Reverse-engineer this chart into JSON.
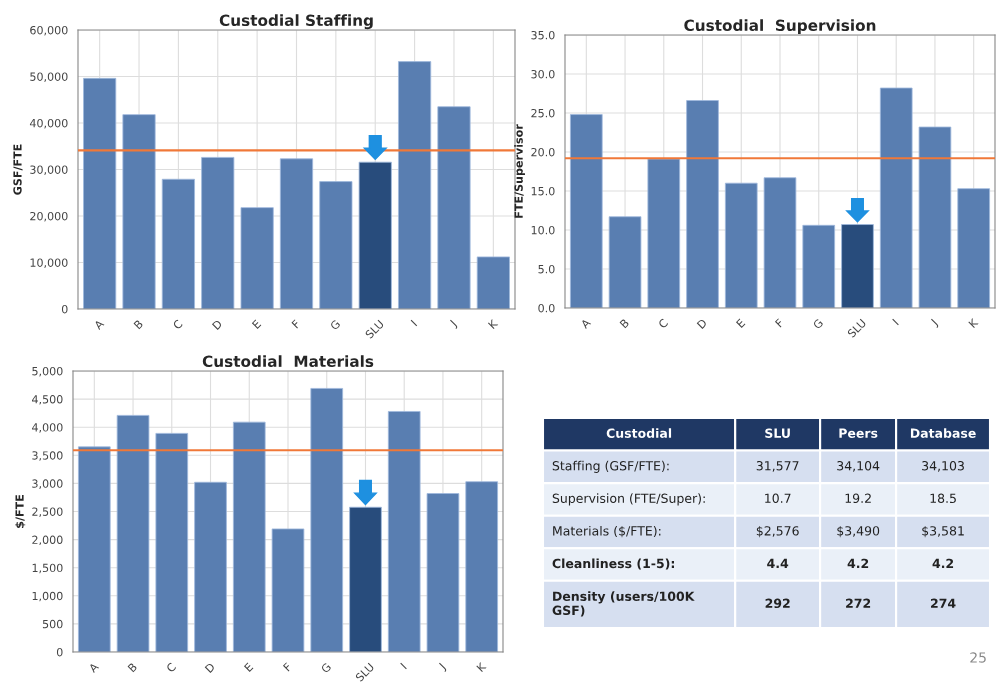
{
  "chart_data": [
    {
      "type": "bar",
      "title": "Custodial Staffing",
      "ylabel": "GSF/FTE",
      "categories": [
        "A",
        "B",
        "C",
        "D",
        "E",
        "F",
        "G",
        "SLU",
        "I",
        "J",
        "K"
      ],
      "values": [
        49600,
        41800,
        27900,
        32600,
        21800,
        32300,
        27400,
        31577,
        53200,
        43500,
        11200
      ],
      "colors": [
        "#4a7cc0",
        "#4a7cc0",
        "#4a7cc0",
        "#4a7cc0",
        "#4a7cc0",
        "#4a7cc0",
        "#4a7cc0",
        "#1a4a8a",
        "#4a7cc0",
        "#4a7cc0",
        "#4a7cc0"
      ],
      "ylim": [
        0,
        60000
      ],
      "yticks": [
        {
          "value": 0,
          "label": "0"
        },
        {
          "value": 10000,
          "label": "10,000"
        },
        {
          "value": 20000,
          "label": "20,000"
        },
        {
          "value": 30000,
          "label": "30,000"
        },
        {
          "value": 40000,
          "label": "40,000"
        },
        {
          "value": 50000,
          "label": "50,000"
        },
        {
          "value": 60000,
          "label": "60,000"
        }
      ],
      "ref_lines": [
        {
          "axis": "y",
          "value": 34104,
          "color": "#f07838"
        }
      ],
      "grid": true
    },
    {
      "type": "bar",
      "title": "Custodial  Supervision",
      "ylabel": "FTE/Supervisor",
      "categories": [
        "A",
        "B",
        "C",
        "D",
        "E",
        "F",
        "G",
        "SLU",
        "I",
        "J",
        "K"
      ],
      "values": [
        24.8,
        11.7,
        19.1,
        26.6,
        16.0,
        16.7,
        10.6,
        10.7,
        28.2,
        23.2,
        15.3
      ],
      "colors": [
        "#4a7cc0",
        "#4a7cc0",
        "#4a7cc0",
        "#4a7cc0",
        "#4a7cc0",
        "#4a7cc0",
        "#4a7cc0",
        "#1a4a8a",
        "#4a7cc0",
        "#4a7cc0",
        "#4a7cc0"
      ],
      "ylim": [
        0,
        35
      ],
      "yticks": [
        {
          "value": 0,
          "label": "0.0"
        },
        {
          "value": 5,
          "label": "5.0"
        },
        {
          "value": 10,
          "label": "10.0"
        },
        {
          "value": 15,
          "label": "15.0"
        },
        {
          "value": 20,
          "label": "20.0"
        },
        {
          "value": 25,
          "label": "25.0"
        },
        {
          "value": 30,
          "label": "30.0"
        },
        {
          "value": 35,
          "label": "35.0"
        }
      ],
      "ref_lines": [
        {
          "axis": "y",
          "value": 19.2,
          "color": "#f07838"
        }
      ],
      "grid": true
    },
    {
      "type": "bar",
      "title": "Custodial  Materials",
      "ylabel": "$/FTE",
      "categories": [
        "A",
        "B",
        "C",
        "D",
        "E",
        "F",
        "G",
        "SLU",
        "I",
        "J",
        "K"
      ],
      "values": [
        3650,
        4210,
        3890,
        3020,
        4090,
        2190,
        4690,
        2576,
        4280,
        2820,
        3030
      ],
      "colors": [
        "#4a7cc0",
        "#4a7cc0",
        "#4a7cc0",
        "#4a7cc0",
        "#4a7cc0",
        "#4a7cc0",
        "#4a7cc0",
        "#1a4a8a",
        "#4a7cc0",
        "#4a7cc0",
        "#4a7cc0"
      ],
      "ylim": [
        0,
        5000
      ],
      "yticks": [
        {
          "value": 0,
          "label": "0"
        },
        {
          "value": 500,
          "label": "500"
        },
        {
          "value": 1000,
          "label": "1,000"
        },
        {
          "value": 1500,
          "label": "1,500"
        },
        {
          "value": 2000,
          "label": "2,000"
        },
        {
          "value": 2500,
          "label": "2,500"
        },
        {
          "value": 3000,
          "label": "3,000"
        },
        {
          "value": 3500,
          "label": "3,500"
        },
        {
          "value": 4000,
          "label": "4,000"
        },
        {
          "value": 4500,
          "label": "4,500"
        },
        {
          "value": 5000,
          "label": "5,000"
        }
      ],
      "ref_lines": [
        {
          "axis": "y",
          "value": 3590,
          "color": "#f07838"
        }
      ],
      "grid": true
    },
    {
      "type": "other",
      "categories": [
        "Custodial",
        "SLU",
        "Peers",
        "Database"
      ],
      "cell_labels": [
        [
          "Staffing (GSF/FTE):",
          "31,577",
          "34,104",
          "34,103"
        ],
        [
          "Supervision (FTE/Super):",
          "10.7",
          "19.2",
          "18.5"
        ],
        [
          "Materials ($/FTE):",
          "$2,576",
          "$3,490",
          "$3,581"
        ],
        [
          "Cleanliness (1-5):",
          "4.4",
          "4.2",
          "4.2"
        ],
        [
          "Density (users/100K\nGSF)",
          "292",
          "272",
          "274"
        ]
      ],
      "annotations": [
        "25"
      ]
    }
  ]
}
